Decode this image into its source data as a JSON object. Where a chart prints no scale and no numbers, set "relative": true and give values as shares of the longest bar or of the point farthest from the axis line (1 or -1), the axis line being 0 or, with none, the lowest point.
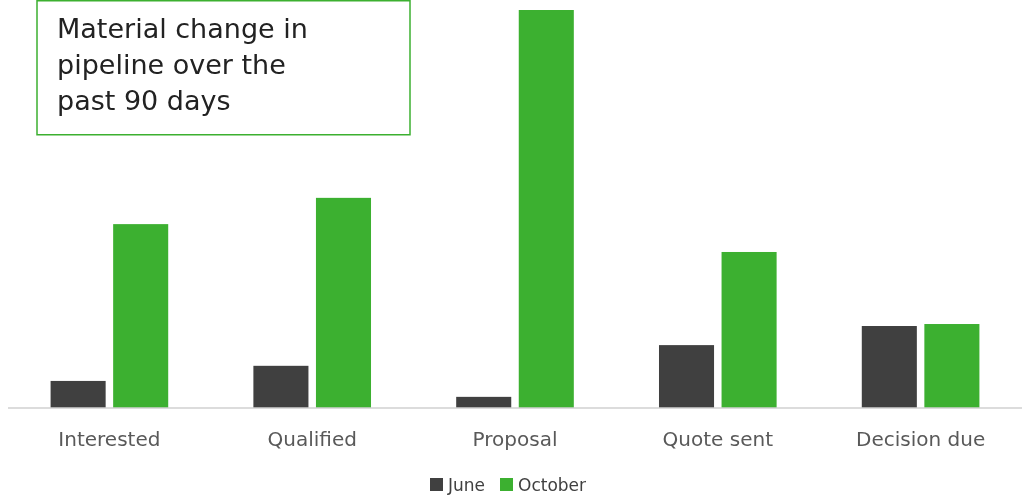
{
  "chart_data": {
    "type": "bar",
    "title": "Material change in pipeline over the past 90 days",
    "relative": true,
    "categories": [
      "Interested",
      "Qualified",
      "Proposal",
      "Quote sent",
      "Decision due"
    ],
    "series": [
      {
        "name": "June",
        "color": "#404040",
        "values": [
          0.068,
          0.106,
          0.028,
          0.158,
          0.206
        ]
      },
      {
        "name": "October",
        "color": "#3cb030",
        "values": [
          0.462,
          0.528,
          1,
          0.392,
          0.211
        ]
      }
    ],
    "legend": "bottom"
  }
}
